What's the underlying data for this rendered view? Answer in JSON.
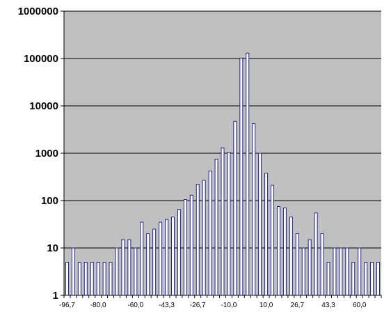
{
  "chart_data": {
    "type": "bar",
    "yscale": "log",
    "ylim": [
      1,
      1000000
    ],
    "yticks": [
      "1",
      "10",
      "100",
      "1000",
      "10000",
      "100000",
      "1000000"
    ],
    "xticklabels": [
      "-96,7",
      "-80,0",
      "-60,0",
      "-43,3",
      "-26,7",
      "-10,0",
      "10,0",
      "26,7",
      "43,3",
      "60,0"
    ],
    "grid": true,
    "legend": "none",
    "colors": {
      "plot_bg": "#c0c0c0",
      "bar_fill": "#ffffff",
      "bar_stroke": "#1f1f8f",
      "grid": "#000000"
    },
    "values": [
      5,
      10,
      5,
      5,
      5,
      5,
      5,
      5,
      10,
      15,
      15,
      10,
      35,
      20,
      25,
      35,
      40,
      45,
      65,
      105,
      130,
      220,
      270,
      420,
      750,
      1300,
      1050,
      4700,
      102000,
      130000,
      4200,
      1000,
      380,
      210,
      75,
      70,
      45,
      20,
      10,
      15,
      55,
      20,
      5,
      10,
      10,
      10,
      5,
      10,
      5,
      5,
      5
    ]
  }
}
